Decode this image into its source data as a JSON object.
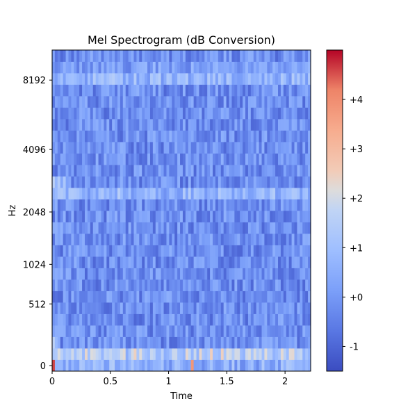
{
  "chart_data": {
    "type": "heatmap",
    "title": "Mel Spectrogram (dB Conversion)",
    "xlabel": "Time",
    "ylabel": "Hz",
    "x_range": [
      0,
      2.22
    ],
    "x_ticks": [
      {
        "value": 0,
        "label": "0"
      },
      {
        "value": 0.5,
        "label": "0.5"
      },
      {
        "value": 1,
        "label": "1"
      },
      {
        "value": 1.5,
        "label": "1.5"
      },
      {
        "value": 2,
        "label": "2"
      }
    ],
    "y_scale": "mel",
    "y_ticks": [
      {
        "value": 0,
        "label": "0"
      },
      {
        "value": 512,
        "label": "512"
      },
      {
        "value": 1024,
        "label": "1024"
      },
      {
        "value": 2048,
        "label": "2048"
      },
      {
        "value": 4096,
        "label": "4096"
      },
      {
        "value": 8192,
        "label": "8192"
      }
    ],
    "colormap": "coolwarm",
    "color_range": [
      -1.5,
      5.0
    ],
    "colorbar_ticks": [
      {
        "value": -1,
        "label": "-1"
      },
      {
        "value": 0,
        "label": "+0"
      },
      {
        "value": 1,
        "label": "+1"
      },
      {
        "value": 2,
        "label": "+2"
      },
      {
        "value": 3,
        "label": "+3"
      },
      {
        "value": 4,
        "label": "+4"
      }
    ],
    "grid": false,
    "colorbar_position": "right"
  }
}
